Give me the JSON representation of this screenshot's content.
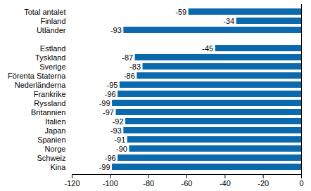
{
  "chart_data": {
    "type": "bar",
    "orientation": "horizontal",
    "categories": [
      "Total antalet",
      "Finland",
      "Utländer",
      null,
      "Estland",
      "Tyskland",
      "Sverige",
      "Förenta Staterna",
      "Nederländerna",
      "Frankrike",
      "Ryssland",
      "Britannien",
      "Italien",
      "Japan",
      "Spanien",
      "Norge",
      "Schweiz",
      "Kina"
    ],
    "values": [
      -59,
      -34,
      -93,
      null,
      -45,
      -87,
      -83,
      -86,
      -95,
      -96,
      -99,
      -97,
      -92,
      -93,
      -91,
      -90,
      -96,
      -99
    ],
    "color": "#0a6aad",
    "xlim": [
      -120,
      0
    ],
    "xticks": [
      -120,
      -100,
      -80,
      -60,
      -40,
      -20,
      0
    ],
    "grid": false,
    "data_labels": true
  }
}
